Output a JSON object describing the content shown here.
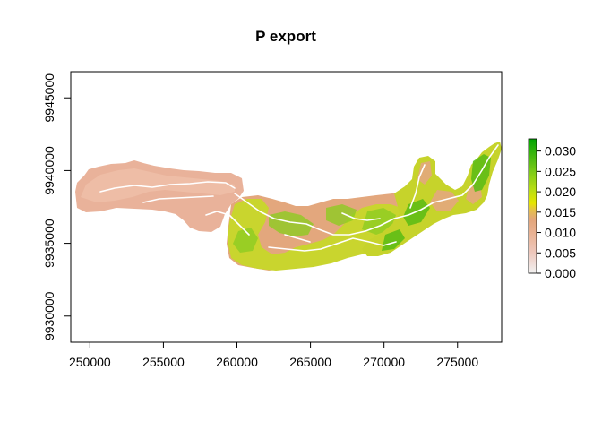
{
  "chart_data": {
    "type": "heatmap",
    "title": "P export",
    "xlabel": "",
    "ylabel": "",
    "xlim": [
      248700,
      278000
    ],
    "ylim": [
      9928200,
      9946800
    ],
    "x_ticks": [
      {
        "value": 250000,
        "label": "250000"
      },
      {
        "value": 255000,
        "label": "255000"
      },
      {
        "value": 260000,
        "label": "260000"
      },
      {
        "value": 265000,
        "label": "265000"
      },
      {
        "value": 270000,
        "label": "270000"
      },
      {
        "value": 275000,
        "label": "275000"
      }
    ],
    "y_ticks": [
      {
        "value": 9930000,
        "label": "9930000"
      },
      {
        "value": 9935000,
        "label": "9935000"
      },
      {
        "value": 9940000,
        "label": "9940000"
      },
      {
        "value": 9945000,
        "label": "9945000"
      }
    ],
    "legend": {
      "position": "right",
      "range": [
        0,
        0.033
      ],
      "ticks": [
        {
          "value": 0.0,
          "label": "0.000"
        },
        {
          "value": 0.005,
          "label": "0.005"
        },
        {
          "value": 0.01,
          "label": "0.010"
        },
        {
          "value": 0.015,
          "label": "0.015"
        },
        {
          "value": 0.02,
          "label": "0.020"
        },
        {
          "value": 0.025,
          "label": "0.025"
        },
        {
          "value": 0.03,
          "label": "0.030"
        },
        {
          "value": 0.033,
          "label": ""
        }
      ],
      "colors": [
        "#f2f2f2",
        "#eec8bd",
        "#e9b192",
        "#e3a57a",
        "#e6c04a",
        "#e6e600",
        "#b9de13",
        "#7fcc17",
        "#3fb60e",
        "#00a600"
      ]
    },
    "colors": {
      "low_region": "#e8b197",
      "low_region_light": "#efbfa8",
      "mid_region": "#e5a97e",
      "mid_region_alt": "#d99f78",
      "high_region": "#c8d62e",
      "high_region_green": "#8ccc1f",
      "stream": "#ffffff"
    }
  }
}
